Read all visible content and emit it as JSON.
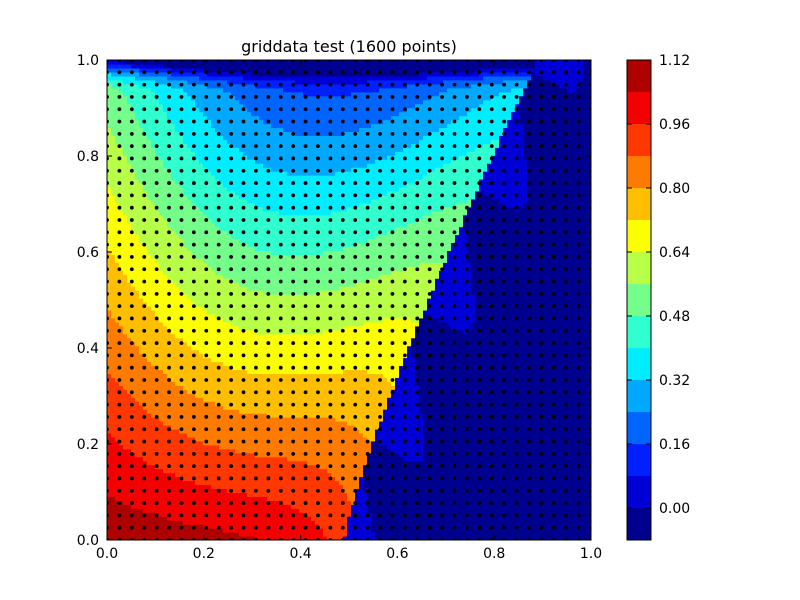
{
  "chart_data": {
    "type": "contourf",
    "title": "griddata test (1600 points)",
    "xlabel": "",
    "ylabel": "",
    "xlim": [
      0.0,
      1.0
    ],
    "ylim": [
      0.0,
      1.0
    ],
    "x_ticks": [
      "0.0",
      "0.2",
      "0.4",
      "0.6",
      "0.8",
      "1.0"
    ],
    "y_ticks": [
      "0.0",
      "0.2",
      "0.4",
      "0.6",
      "0.8",
      "1.0"
    ],
    "grid": false,
    "scatter_points": {
      "count": 1600,
      "grid_size": [
        40,
        40
      ],
      "color": "#000000"
    },
    "field": {
      "min_region_value": -0.08,
      "high_value_side": "left",
      "low_value_side": "right"
    },
    "colorbar": {
      "min": -0.08,
      "max": 1.12,
      "levels": [
        -0.08,
        0.0,
        0.08,
        0.16,
        0.24,
        0.32,
        0.4,
        0.48,
        0.56,
        0.64,
        0.72,
        0.8,
        0.88,
        0.96,
        1.04,
        1.12
      ],
      "colors": [
        "#00008f",
        "#0000d6",
        "#0020ff",
        "#0064ff",
        "#00a8ff",
        "#00ecff",
        "#30ffcf",
        "#74ff8b",
        "#b8ff47",
        "#fcff03",
        "#ffbf00",
        "#ff7b00",
        "#ff3700",
        "#f30000",
        "#af0000"
      ],
      "tick_labels": [
        "0.00",
        "0.16",
        "0.32",
        "0.48",
        "0.64",
        "0.80",
        "0.96",
        "1.12"
      ]
    }
  }
}
